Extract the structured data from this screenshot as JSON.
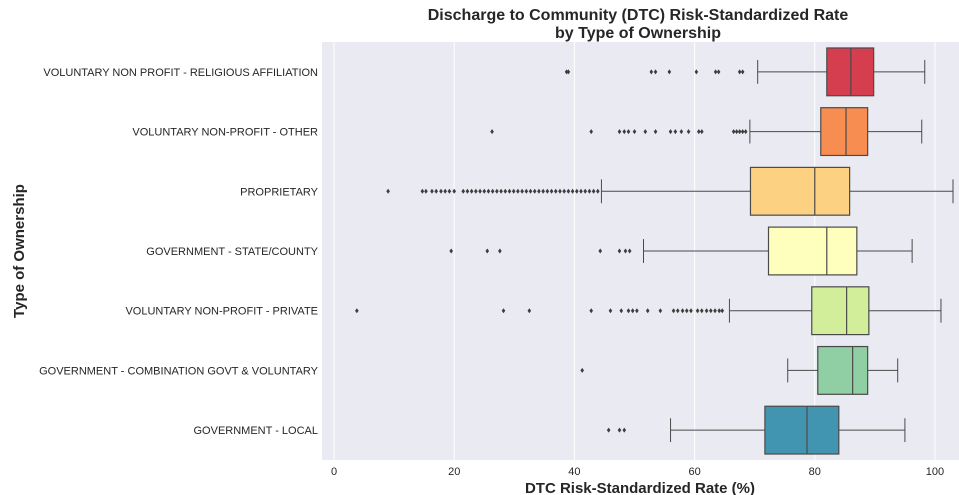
{
  "chart_data": {
    "type": "box",
    "title_line1": "Discharge to Community (DTC) Risk-Standardized Rate",
    "title_line2": "by Type of Ownership",
    "xlabel": "DTC Risk-Standardized Rate (%)",
    "ylabel": "Type of Ownership",
    "xlim": [
      -2,
      104
    ],
    "xticks": [
      0,
      20,
      40,
      60,
      80,
      100
    ],
    "grid": true,
    "background": "#eaeaf2",
    "series": [
      {
        "name": "VOLUNTARY NON PROFIT - RELIGIOUS AFFILIATION",
        "color": "#d53e4f",
        "whisker_low": 70.5,
        "q1": 82.0,
        "median": 86.0,
        "q3": 89.8,
        "whisker_high": 98.3,
        "outliers": [
          38.7,
          39.0,
          52.8,
          53.5,
          55.8,
          60.3,
          63.5,
          64.0,
          67.5,
          68.0
        ]
      },
      {
        "name": "VOLUNTARY NON-PROFIT - OTHER",
        "color": "#f88d52",
        "whisker_low": 69.2,
        "q1": 81.0,
        "median": 85.2,
        "q3": 88.8,
        "whisker_high": 97.8,
        "outliers": [
          26.3,
          42.8,
          47.5,
          48.3,
          49.0,
          50.0,
          51.8,
          53.5,
          56.0,
          56.8,
          57.8,
          59.0,
          60.7,
          61.2,
          66.5,
          67.0,
          67.5,
          68.0,
          68.5
        ]
      },
      {
        "name": "PROPRIETARY",
        "color": "#fdd182",
        "whisker_low": 44.5,
        "q1": 69.3,
        "median": 80.0,
        "q3": 85.8,
        "whisker_high": 103.0,
        "outliers": [
          9.0,
          14.7,
          15.3,
          16.3,
          17.0,
          17.8,
          18.5,
          19.2,
          20.0,
          21.5,
          22.2,
          22.9,
          23.6,
          24.3,
          25.0,
          25.7,
          26.4,
          27.1,
          27.8,
          28.5,
          29.2,
          29.9,
          30.6,
          31.3,
          32.0,
          32.7,
          33.4,
          34.1,
          34.8,
          35.5,
          36.2,
          36.9,
          37.6,
          38.3,
          39.0,
          39.7,
          40.4,
          41.1,
          41.8,
          42.5,
          43.2,
          43.9
        ]
      },
      {
        "name": "GOVERNMENT - STATE/COUNTY",
        "color": "#fefebd",
        "whisker_low": 51.5,
        "q1": 72.3,
        "median": 82.0,
        "q3": 87.0,
        "whisker_high": 96.2,
        "outliers": [
          19.5,
          25.5,
          27.6,
          44.3,
          47.5,
          48.5,
          49.2
        ]
      },
      {
        "name": "VOLUNTARY NON-PROFIT - PRIVATE",
        "color": "#d3ee9b",
        "whisker_low": 65.8,
        "q1": 79.5,
        "median": 85.3,
        "q3": 89.0,
        "whisker_high": 101.0,
        "outliers": [
          3.8,
          28.2,
          32.5,
          42.8,
          46.0,
          47.8,
          49.0,
          49.7,
          50.4,
          52.2,
          54.3,
          56.5,
          57.2,
          58.0,
          58.7,
          59.4,
          60.5,
          61.2,
          62.0,
          62.7,
          63.4,
          64.1,
          64.6
        ]
      },
      {
        "name": "GOVERNMENT - COMBINATION GOVT & VOLUNTARY",
        "color": "#8fcfa3",
        "whisker_low": 75.5,
        "q1": 80.5,
        "median": 86.3,
        "q3": 88.8,
        "whisker_high": 93.8,
        "outliers": [
          41.3
        ]
      },
      {
        "name": "GOVERNMENT - LOCAL",
        "color": "#4195b1",
        "whisker_low": 56.0,
        "q1": 71.7,
        "median": 78.7,
        "q3": 84.0,
        "whisker_high": 95.0,
        "outliers": [
          45.7,
          47.5,
          48.3
        ]
      }
    ]
  }
}
